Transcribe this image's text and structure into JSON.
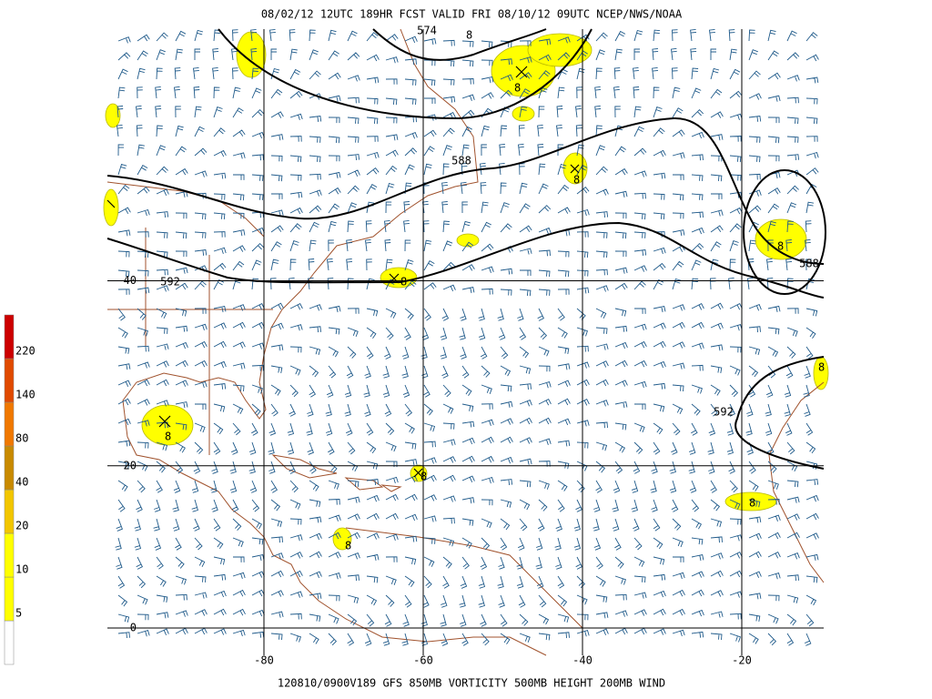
{
  "header": {
    "title": "08/02/12 12UTC  189HR  FCST VALID FRI 08/10/12 09UTC  NCEP/NWS/NOAA"
  },
  "footer": {
    "caption": "120810/0900V189 GFS  850MB VORTICITY 500MB HEIGHT 200MB WIND"
  },
  "colorbar": {
    "levels": [
      5,
      10,
      20,
      40,
      80,
      140,
      220
    ],
    "colors": [
      "#ffffff",
      "#ffff00",
      "#ffff00",
      "#f2c600",
      "#c88a00",
      "#f07800",
      "#e04a00",
      "#cc0000"
    ]
  },
  "map": {
    "latitudes": [
      40,
      20,
      0
    ],
    "longitudes": [
      -80,
      -60,
      -40,
      -20
    ],
    "contour_labels": [
      "574",
      "588",
      "592",
      "588",
      "592"
    ],
    "vortex_labels": [
      "8",
      "8",
      "8",
      "8",
      "8",
      "8",
      "8",
      "8",
      "8",
      "8"
    ]
  }
}
